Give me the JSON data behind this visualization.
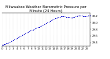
{
  "title": "Milwaukee Weather Barometric Pressure per Minute (24 Hours)",
  "title_fontsize": 3.8,
  "dot_color": "#0000cc",
  "dot_size": 0.8,
  "background_color": "#ffffff",
  "grid_color": "#bbbbbb",
  "x_min": 0,
  "x_max": 1440,
  "y_min": 29.3,
  "y_max": 30.28,
  "ytick_labels": [
    "29.4",
    "29.6",
    "29.8",
    "30.0",
    "30.2"
  ],
  "ytick_values": [
    29.4,
    29.6,
    29.8,
    30.0,
    30.2
  ],
  "xtick_positions": [
    0,
    60,
    120,
    180,
    240,
    300,
    360,
    420,
    480,
    540,
    600,
    660,
    720,
    780,
    840,
    900,
    960,
    1020,
    1080,
    1140,
    1200,
    1260,
    1320,
    1380
  ],
  "xtick_labels": [
    "0",
    "1",
    "2",
    "3",
    "4",
    "5",
    "6",
    "7",
    "8",
    "9",
    "10",
    "11",
    "12",
    "13",
    "14",
    "15",
    "16",
    "17",
    "18",
    "19",
    "20",
    "21",
    "22",
    "23"
  ],
  "tick_fontsize": 2.8,
  "data_points": [
    [
      0,
      29.33
    ],
    [
      10,
      29.33
    ],
    [
      20,
      29.34
    ],
    [
      30,
      29.35
    ],
    [
      40,
      29.35
    ],
    [
      60,
      29.37
    ],
    [
      80,
      29.38
    ],
    [
      100,
      29.39
    ],
    [
      120,
      29.41
    ],
    [
      140,
      29.43
    ],
    [
      160,
      29.45
    ],
    [
      180,
      29.47
    ],
    [
      200,
      29.49
    ],
    [
      220,
      29.51
    ],
    [
      240,
      29.53
    ],
    [
      260,
      29.56
    ],
    [
      280,
      29.58
    ],
    [
      300,
      29.6
    ],
    [
      320,
      29.62
    ],
    [
      340,
      29.64
    ],
    [
      360,
      29.66
    ],
    [
      380,
      29.68
    ],
    [
      400,
      29.7
    ],
    [
      420,
      29.72
    ],
    [
      440,
      29.73
    ],
    [
      460,
      29.75
    ],
    [
      480,
      29.77
    ],
    [
      500,
      29.78
    ],
    [
      520,
      29.8
    ],
    [
      540,
      29.82
    ],
    [
      560,
      29.84
    ],
    [
      580,
      29.86
    ],
    [
      600,
      29.87
    ],
    [
      620,
      29.89
    ],
    [
      640,
      29.91
    ],
    [
      660,
      29.93
    ],
    [
      680,
      29.95
    ],
    [
      700,
      29.97
    ],
    [
      720,
      29.99
    ],
    [
      740,
      30.01
    ],
    [
      760,
      30.03
    ],
    [
      780,
      30.05
    ],
    [
      800,
      30.07
    ],
    [
      820,
      30.08
    ],
    [
      840,
      30.1
    ],
    [
      860,
      30.12
    ],
    [
      880,
      30.13
    ],
    [
      900,
      30.15
    ],
    [
      920,
      30.16
    ],
    [
      940,
      30.17
    ],
    [
      960,
      30.18
    ],
    [
      980,
      30.18
    ],
    [
      1000,
      30.18
    ],
    [
      1020,
      30.18
    ],
    [
      1040,
      30.17
    ],
    [
      1060,
      30.17
    ],
    [
      1080,
      30.16
    ],
    [
      1100,
      30.16
    ],
    [
      1120,
      30.15
    ],
    [
      1140,
      30.15
    ],
    [
      1160,
      30.16
    ],
    [
      1180,
      30.17
    ],
    [
      1200,
      30.18
    ],
    [
      1220,
      30.19
    ],
    [
      1240,
      30.2
    ],
    [
      1260,
      30.21
    ],
    [
      1280,
      30.21
    ],
    [
      1300,
      30.2
    ],
    [
      1320,
      30.19
    ],
    [
      1340,
      30.18
    ],
    [
      1360,
      30.18
    ],
    [
      1380,
      30.19
    ],
    [
      1400,
      30.2
    ],
    [
      1420,
      30.21
    ],
    [
      1440,
      30.2
    ]
  ]
}
